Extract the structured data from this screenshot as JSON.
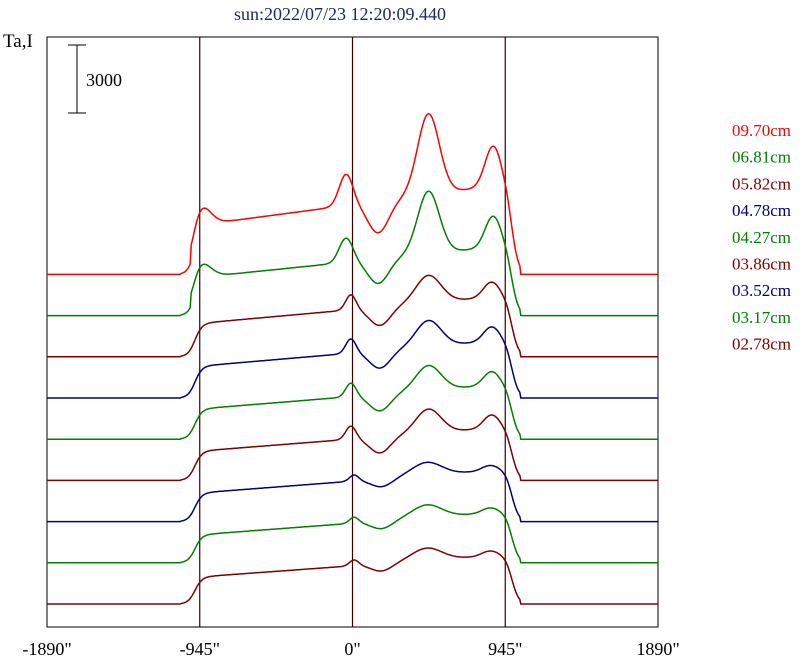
{
  "chart_data": {
    "type": "line",
    "title": "sun:2022/07/23 12:20:09.440",
    "ylabel": "Ta,I",
    "scale_bar_label": "3000",
    "scale_bar_value": 3000,
    "x_ticks": [
      {
        "value": -1890,
        "label": "-1890\""
      },
      {
        "value": -945,
        "label": "-945\""
      },
      {
        "value": 0,
        "label": "0\""
      },
      {
        "value": 945,
        "label": "945\""
      },
      {
        "value": 1890,
        "label": "1890\""
      }
    ],
    "vertical_lines": [
      -945,
      0,
      945
    ],
    "xlim": [
      -1890,
      1890
    ],
    "series": [
      {
        "name": "09.70cm",
        "color": "#ff0000",
        "baseline": 9,
        "amp": 1.55,
        "profile": "peaked"
      },
      {
        "name": "06.81cm",
        "color": "#008000",
        "baseline": 8,
        "amp": 1.2,
        "profile": "peaked"
      },
      {
        "name": "05.82cm",
        "color": "#800000",
        "baseline": 7,
        "amp": 1.05,
        "profile": "mid"
      },
      {
        "name": "04.78cm",
        "color": "#000080",
        "baseline": 6,
        "amp": 1.0,
        "profile": "mid"
      },
      {
        "name": "04.27cm",
        "color": "#008000",
        "baseline": 5,
        "amp": 0.95,
        "profile": "mid"
      },
      {
        "name": "03.86cm",
        "color": "#800000",
        "baseline": 4,
        "amp": 0.92,
        "profile": "mid"
      },
      {
        "name": "03.52cm",
        "color": "#000080",
        "baseline": 3,
        "amp": 0.9,
        "profile": "flat"
      },
      {
        "name": "03.17cm",
        "color": "#008000",
        "baseline": 2,
        "amp": 0.88,
        "profile": "flat"
      },
      {
        "name": "02.78cm",
        "color": "#800000",
        "baseline": 1,
        "amp": 0.85,
        "profile": "flat"
      }
    ]
  }
}
